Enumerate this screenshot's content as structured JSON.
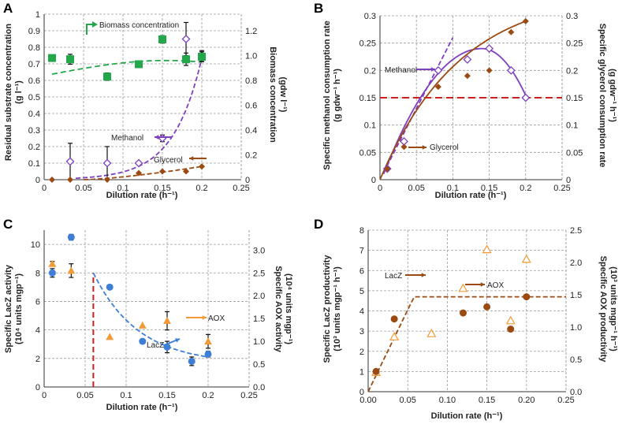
{
  "colors": {
    "green": "#22a84a",
    "purple": "#7f3fbf",
    "brown": "#9b4a12",
    "blue": "#3d7fd6",
    "orange": "#f39a3a",
    "red": "#cc1f1f",
    "grid": "#9a9a9a"
  },
  "chart_data": [
    {
      "id": "A",
      "panel_label": "A",
      "type": "scatter",
      "xlabel": "Dilution rate (h⁻¹)",
      "ylabel": "Residual substrate concentration",
      "ylabel_unit": "(g l⁻¹)",
      "y2label": "Biomass concentration",
      "y2label_unit": "(gdw l⁻¹)",
      "xlim": [
        0,
        0.25
      ],
      "xticks": [
        "0",
        "0.05",
        "0.1",
        "0.15",
        "0.2",
        "0.25"
      ],
      "ylim": [
        0,
        1
      ],
      "yticks": [
        "0",
        "0.1",
        "0.2",
        "0.3",
        "0.4",
        "0.5",
        "0.6",
        "0.7",
        "0.8",
        "0.9",
        "1"
      ],
      "y2lim": [
        0,
        1.333
      ],
      "y2ticks": [
        "0",
        "0.2",
        "0.4",
        "0.6",
        "0.8",
        "1.0",
        "1.2"
      ],
      "series": [
        {
          "name": "Biomass concentration",
          "axis": "y2",
          "marker": "square",
          "x": [
            0.01,
            0.033,
            0.08,
            0.12,
            0.15,
            0.18,
            0.2
          ],
          "y": [
            0.98,
            0.97,
            0.83,
            0.93,
            1.13,
            0.97,
            0.99
          ],
          "err": [
            0.02,
            0.04,
            0.03,
            0.02,
            0.03,
            0.05,
            0.04
          ]
        },
        {
          "name": "Methanol",
          "axis": "y",
          "marker": "diamond-open",
          "x": [
            0.033,
            0.08,
            0.12,
            0.15,
            0.18,
            0.2
          ],
          "y": [
            0.11,
            0.1,
            0.1,
            0.25,
            0.85,
            0.75
          ],
          "err": [
            0.11,
            0.1,
            0.0,
            0.02,
            0.1,
            0.03
          ]
        },
        {
          "name": "Glycerol",
          "axis": "y",
          "marker": "diamond",
          "x": [
            0.01,
            0.033,
            0.08,
            0.12,
            0.15,
            0.18,
            0.2
          ],
          "y": [
            0.0,
            0.0,
            0.0,
            0.04,
            0.05,
            0.05,
            0.08
          ]
        }
      ],
      "annotations": [
        "Biomass concentration",
        "Methanol",
        "Glycerol"
      ]
    },
    {
      "id": "B",
      "panel_label": "B",
      "type": "scatter",
      "xlabel": "Dilution rate (h⁻¹)",
      "ylabel": "Specific methanol consumption rate",
      "ylabel_unit": "(g gdw⁻¹ h⁻¹)",
      "y2label": "Specific glycerol consumption rate",
      "y2label_unit": "(g gdw⁻¹ h⁻¹)",
      "xlim": [
        0,
        0.25
      ],
      "xticks": [
        "0",
        "0.05",
        "0.1",
        "0.15",
        "0.2",
        "0.25"
      ],
      "ylim": [
        0,
        0.3
      ],
      "yticks": [
        "0",
        "0.05",
        "0.1",
        "0.15",
        "0.2",
        "0.25",
        "0.3"
      ],
      "y2lim": [
        0,
        0.3
      ],
      "y2ticks": [
        "0",
        "0.05",
        "0.1",
        "0.15",
        "0.2",
        "0.25",
        "0.3"
      ],
      "series": [
        {
          "name": "Methanol",
          "marker": "diamond-open",
          "x": [
            0.01,
            0.033,
            0.08,
            0.12,
            0.15,
            0.18,
            0.2
          ],
          "y": [
            0.02,
            0.07,
            0.2,
            0.22,
            0.24,
            0.2,
            0.15
          ]
        },
        {
          "name": "Glycerol",
          "marker": "diamond",
          "x": [
            0.01,
            0.033,
            0.08,
            0.12,
            0.15,
            0.18,
            0.2
          ],
          "y": [
            0.02,
            0.06,
            0.17,
            0.19,
            0.2,
            0.27,
            0.29
          ]
        }
      ],
      "reference_line": 0.15,
      "annotations": [
        "Methanol",
        "Glycerol"
      ]
    },
    {
      "id": "C",
      "panel_label": "C",
      "type": "scatter",
      "xlabel": "Dilution rate (h⁻¹)",
      "ylabel": "Specific LacZ activity",
      "ylabel_unit": "(10⁴ units mgp⁻¹)",
      "y2label": "Specific AOX activity",
      "y2label_unit": "(10⁴ units mgp⁻¹)",
      "xlim": [
        0,
        0.25
      ],
      "xticks": [
        "0",
        "0.05",
        "0.1",
        "0.15",
        "0.2",
        "0.25"
      ],
      "ylim": [
        0,
        11
      ],
      "yticks": [
        "0",
        "2",
        "4",
        "6",
        "8",
        "10"
      ],
      "y2lim": [
        0,
        3.4375
      ],
      "y2ticks": [
        "0.0",
        "0.5",
        "1.0",
        "1.5",
        "2.0",
        "2.5",
        "3.0"
      ],
      "series": [
        {
          "name": "LacZ",
          "axis": "y",
          "marker": "circle",
          "x": [
            0.01,
            0.033,
            0.08,
            0.12,
            0.15,
            0.18,
            0.2
          ],
          "y": [
            8.0,
            10.5,
            7.0,
            3.2,
            2.8,
            1.8,
            2.3
          ],
          "err": [
            0.3,
            0.2,
            0.0,
            0.0,
            0.4,
            0.3,
            0.2
          ]
        },
        {
          "name": "AOX",
          "axis": "y2",
          "marker": "triangle",
          "x": [
            0.01,
            0.033,
            0.08,
            0.12,
            0.15,
            0.18,
            0.2
          ],
          "y": [
            2.7,
            2.55,
            1.1,
            1.35,
            1.45,
            0.6,
            1.0
          ],
          "err": [
            0.05,
            0.15,
            0.0,
            0.0,
            0.2,
            0.0,
            0.15
          ]
        }
      ],
      "critical_dilution_rate": 0.06,
      "annotations": [
        "AOX",
        "LacZ"
      ]
    },
    {
      "id": "D",
      "panel_label": "D",
      "type": "scatter",
      "xlabel": "Dilution rate (h⁻¹)",
      "ylabel": "Specific LacZ productivity",
      "ylabel_unit": "(10³ units mgp⁻¹ h⁻¹)",
      "y2label": "Specific AOX productivity",
      "y2label_unit": "(10³ units mgp⁻¹ h⁻¹)",
      "xlim": [
        0,
        0.25
      ],
      "xticks": [
        "0.00",
        "0.05",
        "0.10",
        "0.15",
        "0.20",
        "0.25"
      ],
      "ylim": [
        0,
        8
      ],
      "yticks": [
        "0",
        "1",
        "2",
        "3",
        "4",
        "5",
        "6",
        "7",
        "8"
      ],
      "y2lim": [
        0,
        2.5
      ],
      "y2ticks": [
        "0.0",
        "0.5",
        "1.0",
        "1.5",
        "2.0",
        "2.5"
      ],
      "series": [
        {
          "name": "LacZ",
          "axis": "y",
          "marker": "circle",
          "x": [
            0.01,
            0.033,
            0.12,
            0.15,
            0.18,
            0.2
          ],
          "y": [
            1.0,
            3.6,
            3.9,
            4.2,
            3.1,
            4.7
          ]
        },
        {
          "name": "AOX",
          "axis": "y2",
          "marker": "triangle-open",
          "x": [
            0.01,
            0.033,
            0.08,
            0.12,
            0.15,
            0.18,
            0.2
          ],
          "y": [
            0.3,
            0.85,
            0.9,
            1.6,
            2.2,
            1.1,
            2.05
          ]
        }
      ],
      "plateau": 4.7,
      "annotations": [
        "LacZ",
        "AOX"
      ]
    }
  ]
}
